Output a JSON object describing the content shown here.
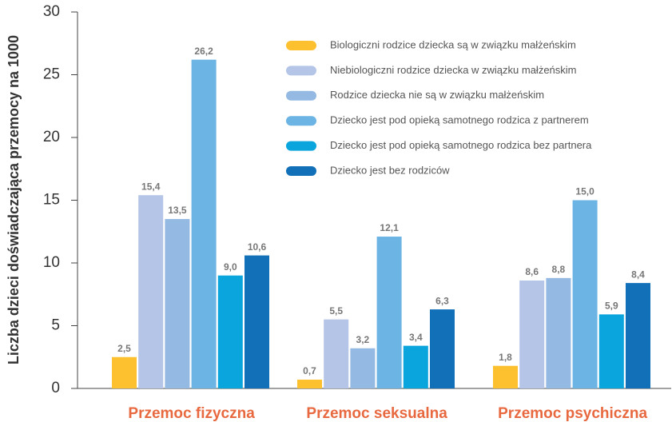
{
  "chart_data": {
    "type": "bar",
    "y_label": "Liczba dzieci doświadczająca przemocy na 1000",
    "categories": [
      "Przemoc fizyczna",
      "Przemoc seksualna",
      "Przemoc psychiczna"
    ],
    "series": [
      {
        "name": "Biologiczni rodzice dziecka są w związku małżeńskim",
        "color": "#fdc130",
        "values": [
          2.5,
          0.7,
          1.8
        ],
        "value_labels": [
          "2,5",
          "0,7",
          "1,8"
        ]
      },
      {
        "name": "Niebiologiczni rodzice dziecka w związku małżeńskim",
        "color": "#b4c5e7",
        "values": [
          15.4,
          5.5,
          8.6
        ],
        "value_labels": [
          "15,4",
          "5,5",
          "8,6"
        ]
      },
      {
        "name": "Rodzice dziecka nie są w związku małżeńskim",
        "color": "#94b9e3",
        "values": [
          13.5,
          3.2,
          8.8
        ],
        "value_labels": [
          "13,5",
          "3,2",
          "8,8"
        ]
      },
      {
        "name": "Dziecko jest pod opieką samotnego rodzica z partnerem",
        "color": "#6cb4e4",
        "values": [
          26.2,
          12.1,
          15.0
        ],
        "value_labels": [
          "26,2",
          "12,1",
          "15,0"
        ]
      },
      {
        "name": "Dziecko jest pod opieką samotnego rodzica bez partnera",
        "color": "#0ba5de",
        "values": [
          9.0,
          3.4,
          5.9
        ],
        "value_labels": [
          "9,0",
          "3,4",
          "5,9"
        ]
      },
      {
        "name": "Dziecko jest bez rodziców",
        "color": "#1170b8",
        "values": [
          10.6,
          6.3,
          8.4
        ],
        "value_labels": [
          "10,6",
          "6,3",
          "8,4"
        ]
      }
    ],
    "ylim": [
      0,
      30
    ],
    "yticks": [
      0,
      5,
      10,
      15,
      20,
      25,
      30
    ],
    "grid": false,
    "legend": "upper right"
  }
}
